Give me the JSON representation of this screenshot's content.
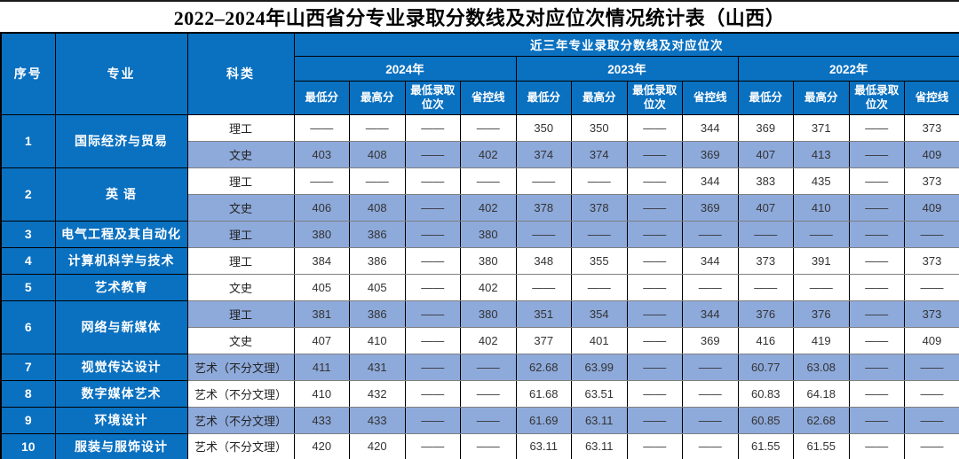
{
  "title": "2022–2024年山西省分专业录取分数线及对应位次情况统计表（山西）",
  "colors": {
    "header_bg": "#0a70c0",
    "stripe_bg": "#8eaadb",
    "header_text": "#ffffff",
    "body_text": "#333333",
    "grid_vertical": "#000000",
    "grid_horizontal": "#7f7f7f"
  },
  "table": {
    "header": {
      "index": "序号",
      "major": "专业",
      "category": "科类",
      "group": "近三年专业录取分数线及对应位次",
      "years": [
        "2024年",
        "2023年",
        "2022年"
      ],
      "metrics": [
        "最低分",
        "最高分",
        "最低录取位次",
        "省控线"
      ]
    },
    "rows": [
      {
        "index": "1",
        "major": "国际经济与贸易",
        "subrows": [
          {
            "category": "理工",
            "striped": false,
            "values": [
              "——",
              "——",
              "——",
              "——",
              "350",
              "350",
              "——",
              "344",
              "369",
              "371",
              "——",
              "373"
            ]
          },
          {
            "category": "文史",
            "striped": true,
            "values": [
              "403",
              "408",
              "——",
              "402",
              "374",
              "374",
              "——",
              "369",
              "407",
              "413",
              "——",
              "409"
            ]
          }
        ]
      },
      {
        "index": "2",
        "major": "英 语",
        "subrows": [
          {
            "category": "理工",
            "striped": false,
            "values": [
              "——",
              "——",
              "——",
              "——",
              "——",
              "——",
              "——",
              "344",
              "383",
              "435",
              "——",
              "373"
            ]
          },
          {
            "category": "文史",
            "striped": true,
            "values": [
              "406",
              "408",
              "——",
              "402",
              "378",
              "378",
              "——",
              "369",
              "407",
              "410",
              "——",
              "409"
            ]
          }
        ]
      },
      {
        "index": "3",
        "major": "电气工程及其自动化",
        "subrows": [
          {
            "category": "理工",
            "striped": true,
            "values": [
              "380",
              "386",
              "——",
              "380",
              "——",
              "——",
              "——",
              "——",
              "——",
              "——",
              "——",
              "——"
            ]
          }
        ]
      },
      {
        "index": "4",
        "major": "计算机科学与技术",
        "subrows": [
          {
            "category": "理工",
            "striped": false,
            "values": [
              "384",
              "386",
              "——",
              "380",
              "348",
              "355",
              "——",
              "344",
              "373",
              "391",
              "——",
              "373"
            ]
          }
        ]
      },
      {
        "index": "5",
        "major": "艺术教育",
        "subrows": [
          {
            "category": "文史",
            "striped": false,
            "values": [
              "405",
              "405",
              "——",
              "402",
              "——",
              "——",
              "——",
              "——",
              "——",
              "——",
              "——",
              "——"
            ]
          }
        ]
      },
      {
        "index": "6",
        "major": "网络与新媒体",
        "subrows": [
          {
            "category": "理工",
            "striped": true,
            "values": [
              "381",
              "386",
              "——",
              "380",
              "351",
              "354",
              "——",
              "344",
              "376",
              "376",
              "——",
              "373"
            ]
          },
          {
            "category": "文史",
            "striped": false,
            "values": [
              "407",
              "410",
              "——",
              "402",
              "377",
              "401",
              "——",
              "369",
              "416",
              "419",
              "——",
              "409"
            ]
          }
        ]
      },
      {
        "index": "7",
        "major": "视觉传达设计",
        "subrows": [
          {
            "category": "艺术（不分文理）",
            "striped": true,
            "values": [
              "411",
              "431",
              "——",
              "——",
              "62.68",
              "63.99",
              "——",
              "——",
              "60.77",
              "63.08",
              "——",
              "——"
            ]
          }
        ]
      },
      {
        "index": "8",
        "major": "数字媒体艺术",
        "subrows": [
          {
            "category": "艺术（不分文理）",
            "striped": false,
            "values": [
              "410",
              "432",
              "——",
              "——",
              "61.68",
              "63.51",
              "——",
              "——",
              "60.83",
              "64.18",
              "——",
              "——"
            ]
          }
        ]
      },
      {
        "index": "9",
        "major": "环境设计",
        "subrows": [
          {
            "category": "艺术（不分文理）",
            "striped": true,
            "values": [
              "433",
              "433",
              "——",
              "——",
              "61.69",
              "63.11",
              "——",
              "——",
              "60.85",
              "62.68",
              "——",
              "——"
            ]
          }
        ]
      },
      {
        "index": "10",
        "major": "服装与服饰设计",
        "subrows": [
          {
            "category": "艺术（不分文理）",
            "striped": false,
            "values": [
              "420",
              "420",
              "——",
              "——",
              "63.11",
              "63.11",
              "——",
              "——",
              "61.55",
              "61.55",
              "——",
              "——"
            ]
          }
        ]
      }
    ]
  }
}
